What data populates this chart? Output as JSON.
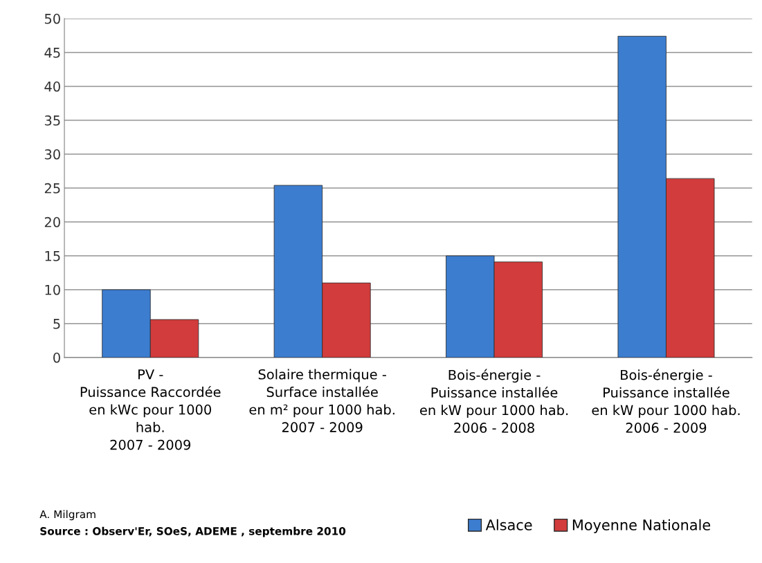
{
  "chart_data": {
    "type": "bar",
    "categories": [
      "PV -\nPuissance Raccordée\nen kWc pour 1000\nhab.\n2007 - 2009",
      "Solaire thermique -\nSurface installée\nen m² pour 1000 hab.\n2007 - 2009",
      "Bois-énergie -\nPuissance installée\nen kW pour 1000 hab.\n2006 - 2008",
      "Bois-énergie -\nPuissance installée\nen kW pour 1000 hab.\n2006 - 2009"
    ],
    "series": [
      {
        "name": "Alsace",
        "color": "#3c7dd0",
        "values": [
          10,
          25.4,
          15,
          47.4
        ]
      },
      {
        "name": "Moyenne Nationale",
        "color": "#d23c3c",
        "values": [
          5.6,
          11,
          14.1,
          26.4
        ]
      }
    ],
    "ylim": [
      0,
      50
    ],
    "yticks": [
      0,
      5,
      10,
      15,
      20,
      25,
      30,
      35,
      40,
      45,
      50
    ],
    "grid": "y",
    "legend": "bottom right",
    "annotations": [
      "A. Milgram",
      "Source : Observ'Er, SOeS, ADEME , septembre 2010"
    ]
  }
}
